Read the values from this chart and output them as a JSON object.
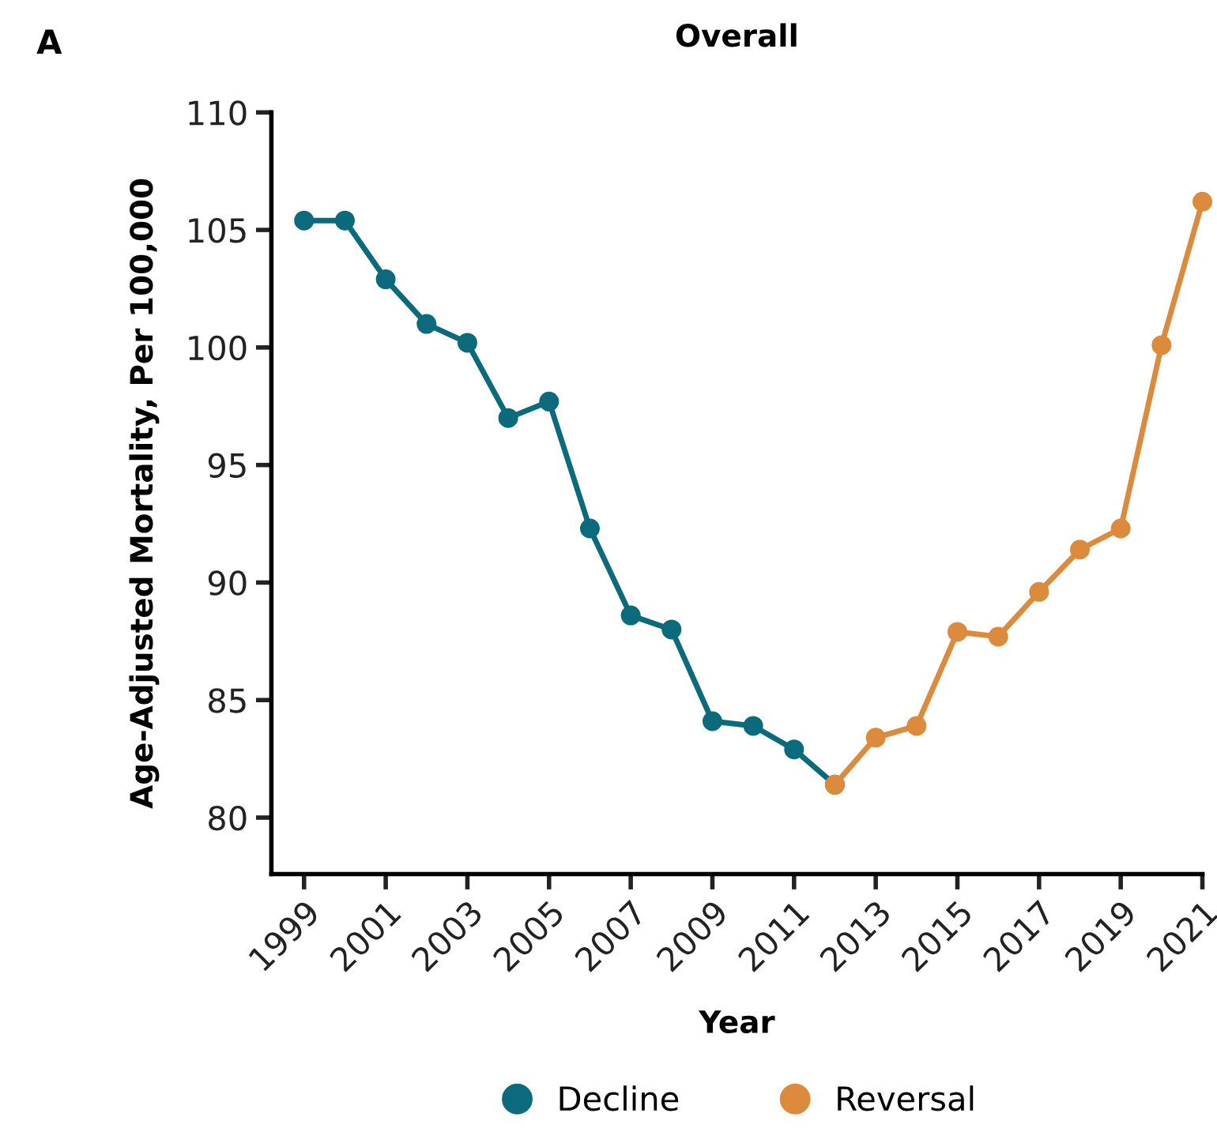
{
  "chart_data": {
    "type": "line",
    "title": "Overall",
    "xlabel": "Year",
    "ylabel": "Age-Adjusted Mortality, Per 100,000",
    "annotations": [
      "A"
    ],
    "series": [
      {
        "name": "Decline",
        "color": "#0b6b7c",
        "x": [
          1999,
          2000,
          2001,
          2002,
          2003,
          2004,
          2005,
          2006,
          2007,
          2008,
          2009,
          2010,
          2011,
          2012
        ],
        "values": [
          105.4,
          105.4,
          102.9,
          101.0,
          100.2,
          97.0,
          97.7,
          92.3,
          88.6,
          88.0,
          84.1,
          83.9,
          82.9,
          81.4
        ]
      },
      {
        "name": "Reversal",
        "color": "#dc8a3c",
        "x": [
          2012,
          2013,
          2014,
          2015,
          2016,
          2017,
          2018,
          2019,
          2020,
          2021
        ],
        "values": [
          81.4,
          83.4,
          83.9,
          87.9,
          87.7,
          89.6,
          91.4,
          92.3,
          100.1,
          106.2
        ]
      }
    ],
    "xlim": [
      1998.2,
      2021
    ],
    "xticks": [
      1999,
      2001,
      2003,
      2005,
      2007,
      2009,
      2011,
      2013,
      2015,
      2017,
      2019,
      2021
    ],
    "ylim": [
      77.6,
      110
    ],
    "yticks": [
      80,
      85,
      90,
      95,
      100,
      105,
      110
    ],
    "grid": false,
    "legend": "bottom",
    "marker": "circle",
    "line_style": "solid"
  }
}
